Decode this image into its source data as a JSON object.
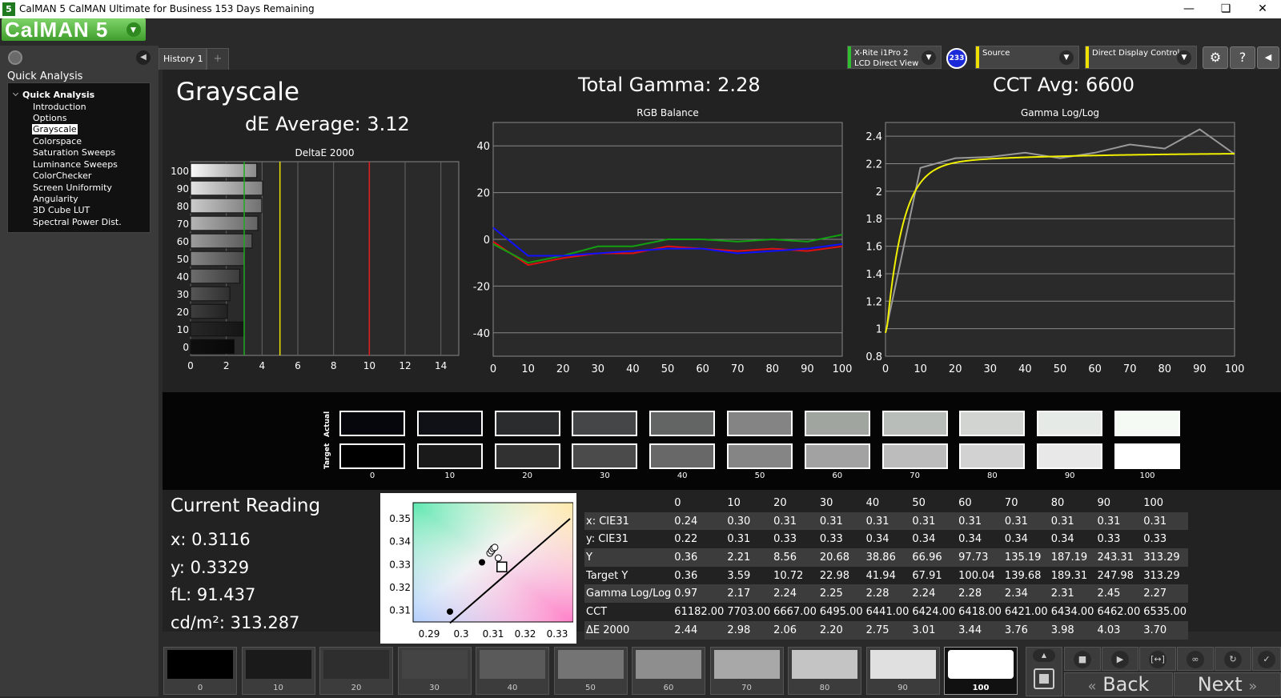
{
  "window": {
    "title": "CalMAN 5 CalMAN Ultimate for Business 153 Days Remaining",
    "icon_label": "5",
    "minimize_icon": "minimize-icon",
    "maximize_icon": "maximize-icon",
    "close_icon": "close-icon"
  },
  "app": {
    "logo": "CalMAN 5"
  },
  "sidebar": {
    "title": "Quick Analysis",
    "tree_root": "Quick Analysis",
    "items": [
      "Introduction",
      "Options",
      "Grayscale",
      "Colorspace",
      "Saturation Sweeps",
      "Luminance Sweeps",
      "ColorChecker",
      "Screen Uniformity",
      "Angularity",
      "3D Cube LUT",
      "Spectral Power Dist."
    ],
    "selected": "Grayscale"
  },
  "tabs": {
    "history": "History 1",
    "add": "+"
  },
  "devices": {
    "meter_line1": "X-Rite i1Pro 2",
    "meter_line2": "LCD Direct View",
    "meter_badge": "233",
    "source": "Source",
    "display": "Direct Display Control",
    "meter_accent": "#2fbf2f",
    "source_accent": "#f0e000",
    "display_accent": "#f0e000"
  },
  "summary": {
    "page_title": "Grayscale",
    "de_average": "dE Average: 3.12",
    "total_gamma": "Total Gamma: 2.28",
    "cct_avg": "CCT Avg: 6600"
  },
  "chart_data": [
    {
      "type": "bar",
      "orientation": "horizontal",
      "title": "DeltaE 2000",
      "categories": [
        "0",
        "10",
        "20",
        "30",
        "40",
        "50",
        "60",
        "70",
        "80",
        "90",
        "100"
      ],
      "values": [
        2.44,
        2.98,
        2.06,
        2.2,
        2.75,
        3.01,
        3.44,
        3.76,
        3.98,
        4.03,
        3.7
      ],
      "xlim": [
        0,
        15
      ],
      "xticks": [
        0,
        2,
        4,
        6,
        8,
        10,
        12,
        14
      ],
      "threshold_lines": [
        {
          "value": 3,
          "color": "#1faa1f"
        },
        {
          "value": 5,
          "color": "#e8e000"
        },
        {
          "value": 10,
          "color": "#e02020"
        }
      ]
    },
    {
      "type": "line",
      "title": "RGB Balance",
      "x": [
        0,
        10,
        20,
        30,
        40,
        50,
        60,
        70,
        80,
        90,
        100
      ],
      "series": [
        {
          "color": "#e01010",
          "values": [
            -1,
            -11,
            -8,
            -6,
            -6,
            -3,
            -4,
            -5,
            -4,
            -5,
            -3
          ]
        },
        {
          "color": "#10a010",
          "values": [
            -2,
            -10,
            -7,
            -3,
            -3,
            0,
            0,
            -1,
            0,
            -1,
            2
          ]
        },
        {
          "color": "#1010ff",
          "values": [
            5,
            -7,
            -7,
            -6,
            -5,
            -4,
            -4,
            -6,
            -5,
            -4,
            -2
          ]
        }
      ],
      "ylim": [
        -50,
        50
      ],
      "yticks": [
        -40,
        -20,
        0,
        20,
        40
      ],
      "xlim": [
        0,
        100
      ]
    },
    {
      "type": "line",
      "title": "Gamma Log/Log",
      "x": [
        0,
        10,
        20,
        30,
        40,
        50,
        60,
        70,
        80,
        90,
        100
      ],
      "series": [
        {
          "color": "#999999",
          "values": [
            0.97,
            2.17,
            2.24,
            2.25,
            2.28,
            2.24,
            2.28,
            2.34,
            2.31,
            2.45,
            2.27
          ]
        },
        {
          "color": "#f0f000",
          "curve": "target_gamma_2.28"
        }
      ],
      "ylim": [
        0.8,
        2.5
      ],
      "yticks": [
        0.8,
        1,
        1.2,
        1.4,
        1.6,
        1.8,
        2,
        2.2,
        2.4
      ],
      "xlim": [
        0,
        100
      ]
    },
    {
      "type": "scatter",
      "title": "",
      "xlim": [
        0.285,
        0.335
      ],
      "ylim": [
        0.305,
        0.357
      ],
      "xticks": [
        "0.29",
        "0.3",
        "0.31",
        "0.32",
        "0.33"
      ],
      "yticks": [
        "0.31",
        "0.32",
        "0.33",
        "0.34",
        "0.35"
      ],
      "points_x": [
        0.3065,
        0.309,
        0.3095,
        0.31,
        0.3105,
        0.3116
      ],
      "points_y": [
        0.331,
        0.335,
        0.336,
        0.337,
        0.3375,
        0.3329
      ],
      "target": [
        0.3127,
        0.329
      ],
      "black_point": [
        0.2965,
        0.3095
      ]
    }
  ],
  "swatches": {
    "labels": [
      "0",
      "10",
      "20",
      "30",
      "40",
      "50",
      "60",
      "70",
      "80",
      "90",
      "100"
    ],
    "actual": [
      "#06060d",
      "#0f1116",
      "#2a2c2e",
      "#454647",
      "#636464",
      "#838483",
      "#a0a5a0",
      "#b9bdb9",
      "#d1d4d1",
      "#e6eae6",
      "#f5faf5"
    ],
    "target": [
      "#000000",
      "#1a1a1a",
      "#313131",
      "#4b4b4b",
      "#686868",
      "#858585",
      "#a2a2a2",
      "#bcbcbc",
      "#d2d2d2",
      "#e8e8e8",
      "#ffffff"
    ],
    "actual_label": "Actual",
    "target_label": "Target"
  },
  "reading": {
    "title": "Current Reading",
    "x": "x: 0.3116",
    "y": "y: 0.3329",
    "fl": "fL: 91.437",
    "cd": "cd/m²: 313.287"
  },
  "table": {
    "header": [
      "",
      "0",
      "10",
      "20",
      "30",
      "40",
      "50",
      "60",
      "70",
      "80",
      "90",
      "100"
    ],
    "rows": [
      [
        "x: CIE31",
        "0.24",
        "0.30",
        "0.31",
        "0.31",
        "0.31",
        "0.31",
        "0.31",
        "0.31",
        "0.31",
        "0.31",
        "0.31"
      ],
      [
        "y: CIE31",
        "0.22",
        "0.31",
        "0.33",
        "0.33",
        "0.34",
        "0.34",
        "0.34",
        "0.34",
        "0.34",
        "0.33",
        "0.33"
      ],
      [
        "Y",
        "0.36",
        "2.21",
        "8.56",
        "20.68",
        "38.86",
        "66.96",
        "97.73",
        "135.19",
        "187.19",
        "243.31",
        "313.29"
      ],
      [
        "Target Y",
        "0.36",
        "3.59",
        "10.72",
        "22.98",
        "41.94",
        "67.91",
        "100.04",
        "139.68",
        "189.31",
        "247.98",
        "313.29"
      ],
      [
        "Gamma Log/Log",
        "0.97",
        "2.17",
        "2.24",
        "2.25",
        "2.28",
        "2.24",
        "2.28",
        "2.34",
        "2.31",
        "2.45",
        "2.27"
      ],
      [
        "CCT",
        "61182.00",
        "7703.00",
        "6667.00",
        "6495.00",
        "6441.00",
        "6424.00",
        "6418.00",
        "6421.00",
        "6434.00",
        "6462.00",
        "6535.00"
      ],
      [
        "ΔE 2000",
        "2.44",
        "2.98",
        "2.06",
        "2.20",
        "2.75",
        "3.01",
        "3.44",
        "3.76",
        "3.98",
        "4.03",
        "3.70"
      ]
    ]
  },
  "patches": {
    "labels": [
      "0",
      "10",
      "20",
      "30",
      "40",
      "50",
      "60",
      "70",
      "80",
      "90",
      "100"
    ],
    "colors": [
      "#000000",
      "#1a1a1a",
      "#2e2e2e",
      "#444444",
      "#5a5a5a",
      "#747474",
      "#8e8e8e",
      "#a8a8a8",
      "#c4c4c4",
      "#e0e0e0",
      "#ffffff"
    ],
    "active": "100"
  },
  "nav": {
    "back": "Back",
    "next": "Next"
  }
}
